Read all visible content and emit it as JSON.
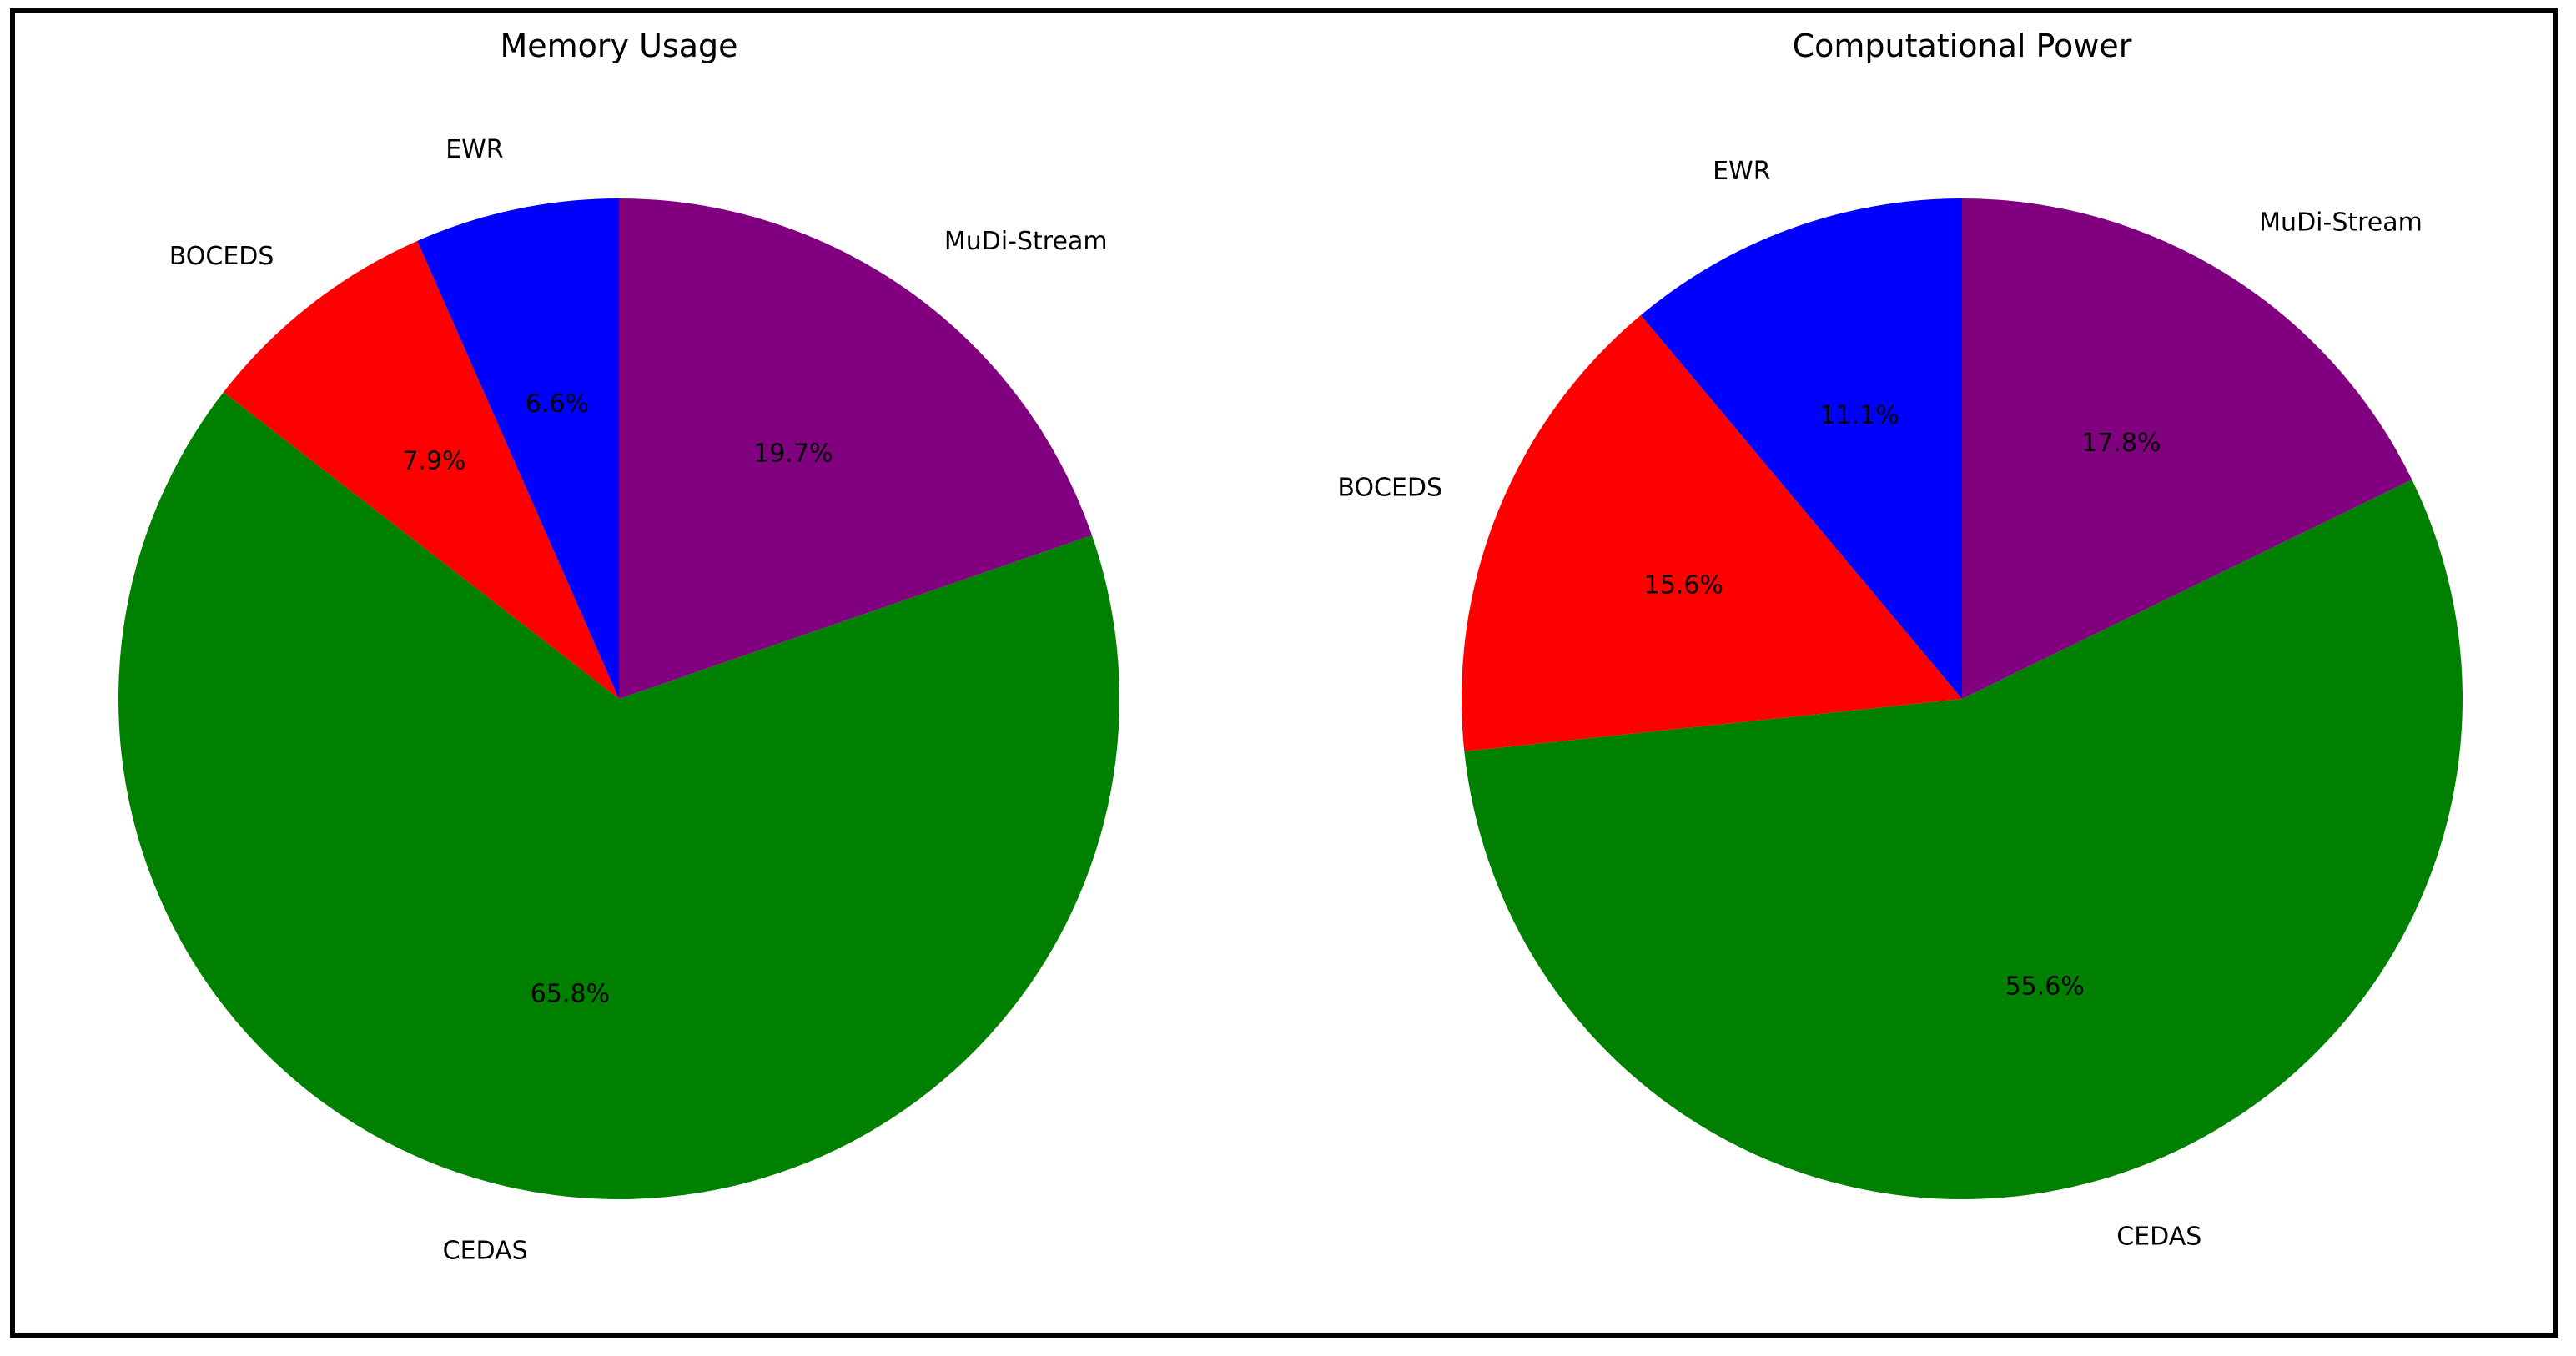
{
  "chart_data": [
    {
      "type": "pie",
      "title": "Memory Usage",
      "categories": [
        "MuDi-Stream",
        "CEDAS",
        "BOCEDS",
        "EWR"
      ],
      "values": [
        19.7,
        65.8,
        7.9,
        6.6
      ],
      "percent_labels": [
        "19.7%",
        "65.8%",
        "7.9%",
        "6.6%"
      ],
      "colors": [
        "#800080",
        "#008000",
        "#ff0000",
        "#0000ff"
      ],
      "start_angle": "top (12 o'clock)",
      "direction": "clockwise",
      "legend": "none"
    },
    {
      "type": "pie",
      "title": "Computational Power",
      "categories": [
        "MuDi-Stream",
        "CEDAS",
        "BOCEDS",
        "EWR"
      ],
      "values": [
        17.8,
        55.6,
        15.6,
        11.1
      ],
      "percent_labels": [
        "17.8%",
        "55.6%",
        "15.6%",
        "11.1%"
      ],
      "colors": [
        "#800080",
        "#008000",
        "#ff0000",
        "#0000ff"
      ],
      "start_angle": "top (12 o'clock)",
      "direction": "clockwise",
      "legend": "none"
    }
  ]
}
